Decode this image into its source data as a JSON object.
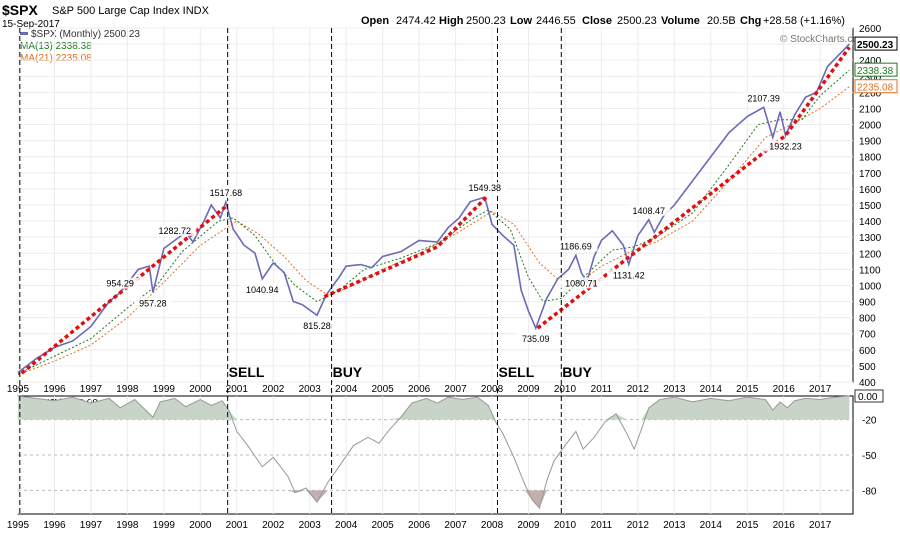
{
  "header": {
    "symbol": "$SPX",
    "description": "S&P 500 Large Cap Index INDX",
    "date": "15-Sep-2017",
    "open_label": "Open",
    "open": "2474.42",
    "high_label": "High",
    "high": "2500.23",
    "low_label": "Low",
    "low": "2446.55",
    "close_label": "Close",
    "close": "2500.23",
    "volume_label": "Volume",
    "volume": "20.5B",
    "chg_label": "Chg",
    "chg": "+28.58 (+1.16%)",
    "watermark": "© StockCharts.com"
  },
  "legend": {
    "price": "$SPX (Monthly) 2500.23",
    "ma13": "MA(13) 2338.38",
    "ma21": "MA(21) 2235.08"
  },
  "signals": [
    {
      "label": "SELL",
      "x": 2000.75
    },
    {
      "label": "BUY",
      "x": 2003.6
    },
    {
      "label": "SELL",
      "x": 2008.15
    },
    {
      "label": "BUY",
      "x": 2009.9
    }
  ],
  "colors": {
    "price": "#6a6ab8",
    "ma13": "#1f7a1f",
    "ma21": "#e07020",
    "trend": "#e01010",
    "willr_line": "#999999",
    "willr_fill": "#c7d4c7",
    "willr_neg_fill": "#c0b0b0"
  },
  "chart_data": [
    {
      "type": "line",
      "title": "$SPX S&P 500 Large Cap Index INDX",
      "xlim": [
        1995,
        2017.9
      ],
      "ylim": [
        400,
        2600
      ],
      "x_ticks": [
        "1995",
        "1996",
        "1997",
        "1998",
        "1999",
        "2000",
        "2001",
        "2002",
        "2003",
        "2004",
        "2005",
        "2006",
        "2007",
        "2008",
        "2009",
        "2010",
        "2011",
        "2012",
        "2013",
        "2014",
        "2015",
        "2016",
        "2017"
      ],
      "y_ticks": [
        400,
        500,
        600,
        700,
        800,
        900,
        1000,
        1100,
        1200,
        1300,
        1400,
        1500,
        1600,
        1700,
        1800,
        1900,
        2000,
        2100,
        2200,
        2300,
        2400,
        2500,
        2600
      ],
      "price_label_box": "2500.23",
      "ma13_label_box": "2338.38",
      "ma21_label_box": "2235.08",
      "series": [
        {
          "name": "$SPX (Monthly)",
          "points": [
            [
              1995.0,
              459
            ],
            [
              1995.5,
              545
            ],
            [
              1996.0,
              615
            ],
            [
              1996.5,
              655
            ],
            [
              1997.0,
              745
            ],
            [
              1997.5,
              900
            ],
            [
              1997.8,
              955
            ],
            [
              1998.3,
              1100
            ],
            [
              1998.6,
              1120
            ],
            [
              1998.7,
              957
            ],
            [
              1999.0,
              1230
            ],
            [
              1999.3,
              1280
            ],
            [
              1999.6,
              1330
            ],
            [
              1999.8,
              1270
            ],
            [
              2000.1,
              1400
            ],
            [
              2000.3,
              1500
            ],
            [
              2000.55,
              1420
            ],
            [
              2000.7,
              1518
            ],
            [
              2000.9,
              1350
            ],
            [
              2001.2,
              1250
            ],
            [
              2001.5,
              1200
            ],
            [
              2001.7,
              1041
            ],
            [
              2002.0,
              1140
            ],
            [
              2002.3,
              1080
            ],
            [
              2002.55,
              900
            ],
            [
              2002.8,
              880
            ],
            [
              2003.2,
              815
            ],
            [
              2003.45,
              940
            ],
            [
              2003.8,
              1050
            ],
            [
              2004.0,
              1120
            ],
            [
              2004.4,
              1130
            ],
            [
              2004.7,
              1110
            ],
            [
              2005.0,
              1180
            ],
            [
              2005.5,
              1210
            ],
            [
              2006.0,
              1280
            ],
            [
              2006.5,
              1270
            ],
            [
              2006.8,
              1360
            ],
            [
              2007.1,
              1420
            ],
            [
              2007.4,
              1520
            ],
            [
              2007.8,
              1549
            ],
            [
              2008.0,
              1380
            ],
            [
              2008.3,
              1310
            ],
            [
              2008.6,
              1250
            ],
            [
              2008.8,
              970
            ],
            [
              2009.0,
              840
            ],
            [
              2009.2,
              735
            ],
            [
              2009.5,
              920
            ],
            [
              2009.8,
              1040
            ],
            [
              2010.1,
              1100
            ],
            [
              2010.3,
              1187
            ],
            [
              2010.45,
              1080
            ],
            [
              2010.6,
              1020
            ],
            [
              2010.8,
              1180
            ],
            [
              2011.0,
              1280
            ],
            [
              2011.3,
              1340
            ],
            [
              2011.6,
              1250
            ],
            [
              2011.75,
              1131
            ],
            [
              2012.0,
              1310
            ],
            [
              2012.3,
              1408
            ],
            [
              2012.45,
              1330
            ],
            [
              2012.7,
              1430
            ],
            [
              2013.0,
              1500
            ],
            [
              2013.5,
              1650
            ],
            [
              2014.0,
              1800
            ],
            [
              2014.5,
              1950
            ],
            [
              2015.0,
              2050
            ],
            [
              2015.45,
              2107
            ],
            [
              2015.7,
              1920
            ],
            [
              2015.9,
              2080
            ],
            [
              2016.05,
              1932
            ],
            [
              2016.3,
              2060
            ],
            [
              2016.6,
              2170
            ],
            [
              2016.9,
              2200
            ],
            [
              2017.2,
              2360
            ],
            [
              2017.5,
              2430
            ],
            [
              2017.8,
              2500
            ]
          ]
        },
        {
          "name": "MA(13)",
          "points": [
            [
              1995.0,
              450
            ],
            [
              1996.0,
              560
            ],
            [
              1997.0,
              670
            ],
            [
              1998.0,
              860
            ],
            [
              1998.8,
              1000
            ],
            [
              1999.5,
              1210
            ],
            [
              2000.5,
              1400
            ],
            [
              2000.9,
              1420
            ],
            [
              2001.5,
              1310
            ],
            [
              2002.0,
              1150
            ],
            [
              2002.6,
              1000
            ],
            [
              2003.2,
              900
            ],
            [
              2003.8,
              970
            ],
            [
              2004.5,
              1100
            ],
            [
              2005.5,
              1170
            ],
            [
              2006.5,
              1260
            ],
            [
              2007.5,
              1420
            ],
            [
              2007.9,
              1470
            ],
            [
              2008.5,
              1350
            ],
            [
              2009.0,
              1050
            ],
            [
              2009.4,
              900
            ],
            [
              2009.9,
              920
            ],
            [
              2010.5,
              1050
            ],
            [
              2011.3,
              1220
            ],
            [
              2011.9,
              1240
            ],
            [
              2012.5,
              1300
            ],
            [
              2013.5,
              1450
            ],
            [
              2014.5,
              1750
            ],
            [
              2015.3,
              2000
            ],
            [
              2015.9,
              2030
            ],
            [
              2016.5,
              2030
            ],
            [
              2017.0,
              2180
            ],
            [
              2017.8,
              2338
            ]
          ]
        },
        {
          "name": "MA(21)",
          "points": [
            [
              1995.0,
              445
            ],
            [
              1996.0,
              530
            ],
            [
              1997.0,
              630
            ],
            [
              1998.0,
              800
            ],
            [
              1999.0,
              1020
            ],
            [
              2000.0,
              1250
            ],
            [
              2001.0,
              1400
            ],
            [
              2001.6,
              1320
            ],
            [
              2002.3,
              1180
            ],
            [
              2002.9,
              1030
            ],
            [
              2003.5,
              940
            ],
            [
              2004.2,
              1000
            ],
            [
              2005.0,
              1100
            ],
            [
              2006.0,
              1200
            ],
            [
              2007.0,
              1320
            ],
            [
              2008.0,
              1460
            ],
            [
              2008.6,
              1380
            ],
            [
              2009.3,
              1140
            ],
            [
              2009.8,
              1040
            ],
            [
              2010.4,
              1020
            ],
            [
              2011.0,
              1120
            ],
            [
              2011.8,
              1210
            ],
            [
              2012.5,
              1270
            ],
            [
              2013.5,
              1400
            ],
            [
              2014.5,
              1650
            ],
            [
              2015.5,
              1920
            ],
            [
              2016.3,
              2010
            ],
            [
              2017.0,
              2100
            ],
            [
              2017.8,
              2235
            ]
          ]
        }
      ],
      "annotations": [
        {
          "x": 2000.7,
          "y": 1518,
          "text": "1517.68"
        },
        {
          "x": 1997.8,
          "y": 955,
          "text": "954.29"
        },
        {
          "x": 1999.3,
          "y": 1283,
          "text": "1282.72"
        },
        {
          "x": 1998.7,
          "y": 957,
          "text": "957.28"
        },
        {
          "x": 2001.7,
          "y": 1041,
          "text": "1040.94"
        },
        {
          "x": 2003.2,
          "y": 815,
          "text": "815.28"
        },
        {
          "x": 2007.8,
          "y": 1549,
          "text": "1549.38"
        },
        {
          "x": 2009.2,
          "y": 735,
          "text": "735.09"
        },
        {
          "x": 2010.3,
          "y": 1187,
          "text": "1186.69"
        },
        {
          "x": 2010.45,
          "y": 1081,
          "text": "1080.71"
        },
        {
          "x": 2011.75,
          "y": 1131,
          "text": "1131.42"
        },
        {
          "x": 2012.3,
          "y": 1408,
          "text": "1408.47"
        },
        {
          "x": 2015.45,
          "y": 2107,
          "text": "2107.39"
        },
        {
          "x": 2016.05,
          "y": 1932,
          "text": "1932.23"
        }
      ],
      "trendlines": [
        [
          [
            1995.1,
            455
          ],
          [
            2000.75,
            1500
          ]
        ],
        [
          [
            2003.4,
            930
          ],
          [
            2006.5,
            1240
          ],
          [
            2007.85,
            1550
          ]
        ],
        [
          [
            2009.25,
            735
          ],
          [
            2016.05,
            1932
          ],
          [
            2017.8,
            2480
          ]
        ]
      ]
    },
    {
      "type": "area",
      "title": "Wm%R(50) 0.00",
      "xlim": [
        1995,
        2017.9
      ],
      "ylim": [
        -100,
        0
      ],
      "y_ticks": [
        -20,
        -50,
        -80
      ],
      "last_value_box": "0.00",
      "series": [
        {
          "name": "Wm%R(50)",
          "points": [
            [
              1995.0,
              0
            ],
            [
              1995.5,
              -2
            ],
            [
              1996.0,
              -4
            ],
            [
              1996.5,
              -1
            ],
            [
              1997.0,
              -6
            ],
            [
              1997.5,
              -2
            ],
            [
              1997.8,
              -10
            ],
            [
              1998.2,
              -3
            ],
            [
              1998.7,
              -18
            ],
            [
              1998.9,
              -5
            ],
            [
              1999.3,
              -2
            ],
            [
              1999.6,
              -9
            ],
            [
              2000.0,
              -3
            ],
            [
              2000.3,
              -8
            ],
            [
              2000.6,
              -4
            ],
            [
              2000.8,
              -13
            ],
            [
              2001.0,
              -30
            ],
            [
              2001.3,
              -42
            ],
            [
              2001.7,
              -60
            ],
            [
              2002.0,
              -52
            ],
            [
              2002.4,
              -68
            ],
            [
              2002.6,
              -82
            ],
            [
              2002.9,
              -78
            ],
            [
              2003.2,
              -90
            ],
            [
              2003.5,
              -73
            ],
            [
              2003.8,
              -60
            ],
            [
              2004.2,
              -42
            ],
            [
              2004.6,
              -35
            ],
            [
              2004.9,
              -40
            ],
            [
              2005.2,
              -28
            ],
            [
              2005.5,
              -18
            ],
            [
              2005.8,
              -6
            ],
            [
              2006.2,
              -2
            ],
            [
              2006.5,
              -6
            ],
            [
              2006.8,
              -1
            ],
            [
              2007.2,
              -3
            ],
            [
              2007.6,
              -1
            ],
            [
              2007.9,
              -8
            ],
            [
              2008.1,
              -22
            ],
            [
              2008.3,
              -32
            ],
            [
              2008.6,
              -52
            ],
            [
              2008.9,
              -75
            ],
            [
              2009.1,
              -88
            ],
            [
              2009.3,
              -95
            ],
            [
              2009.5,
              -72
            ],
            [
              2009.7,
              -55
            ],
            [
              2010.0,
              -42
            ],
            [
              2010.3,
              -30
            ],
            [
              2010.5,
              -45
            ],
            [
              2010.8,
              -35
            ],
            [
              2011.1,
              -22
            ],
            [
              2011.4,
              -15
            ],
            [
              2011.7,
              -32
            ],
            [
              2011.9,
              -45
            ],
            [
              2012.1,
              -28
            ],
            [
              2012.3,
              -10
            ],
            [
              2012.6,
              -3
            ],
            [
              2013.0,
              -1
            ],
            [
              2013.5,
              -5
            ],
            [
              2014.0,
              -2
            ],
            [
              2014.5,
              -4
            ],
            [
              2015.0,
              -1
            ],
            [
              2015.5,
              -3
            ],
            [
              2015.7,
              -12
            ],
            [
              2015.9,
              -5
            ],
            [
              2016.1,
              -10
            ],
            [
              2016.3,
              -4
            ],
            [
              2016.6,
              -2
            ],
            [
              2017.0,
              -3
            ],
            [
              2017.4,
              -1
            ],
            [
              2017.8,
              0
            ]
          ]
        }
      ]
    }
  ]
}
